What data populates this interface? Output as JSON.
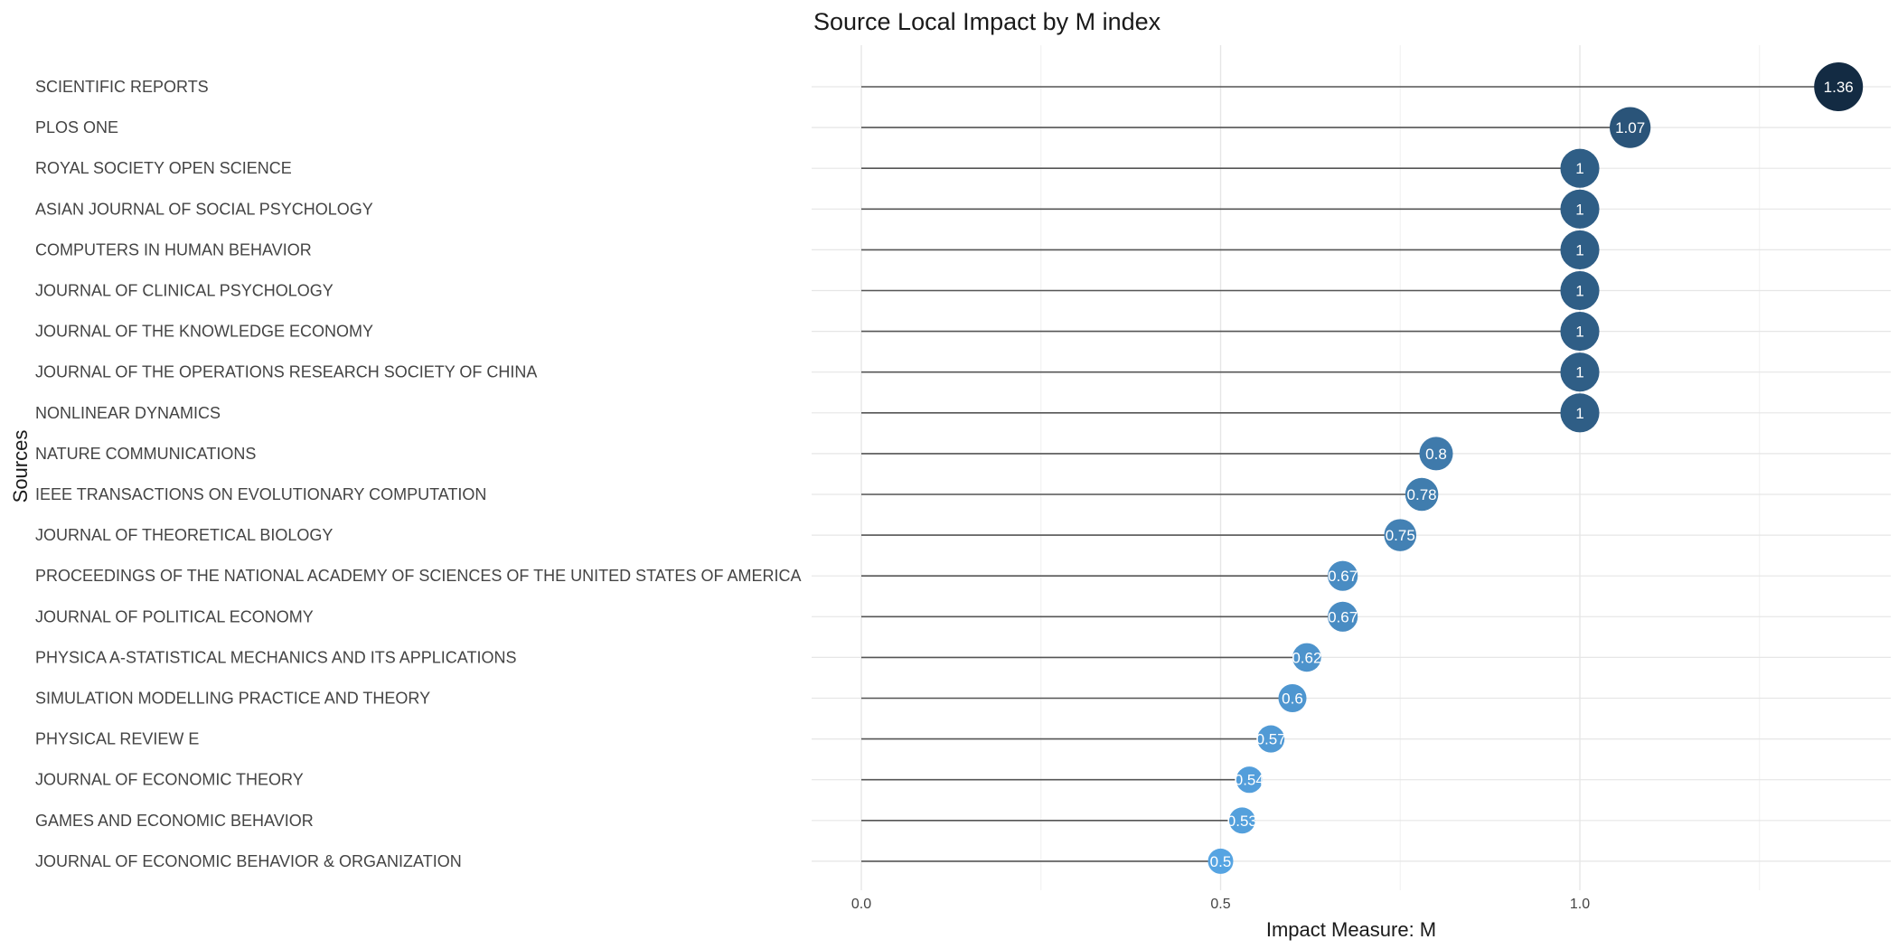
{
  "chart_data": {
    "type": "lollipop",
    "title": "Source Local Impact by M index",
    "xlabel": "Impact Measure: M",
    "ylabel": "Sources",
    "xlim": [
      -0.07,
      1.43
    ],
    "x_ticks": [
      0.0,
      0.5,
      1.0
    ],
    "x_tick_labels": [
      "0.0",
      "0.5",
      "1.0"
    ],
    "grid": true,
    "legend": "none",
    "categories": [
      "SCIENTIFIC REPORTS",
      "PLOS ONE",
      "ROYAL SOCIETY OPEN SCIENCE",
      "ASIAN JOURNAL OF SOCIAL PSYCHOLOGY",
      "COMPUTERS IN HUMAN BEHAVIOR",
      "JOURNAL OF CLINICAL PSYCHOLOGY",
      "JOURNAL OF THE KNOWLEDGE ECONOMY",
      "JOURNAL OF THE OPERATIONS RESEARCH SOCIETY OF CHINA",
      "NONLINEAR DYNAMICS",
      "NATURE COMMUNICATIONS",
      "IEEE TRANSACTIONS ON EVOLUTIONARY COMPUTATION",
      "JOURNAL OF THEORETICAL BIOLOGY",
      "PROCEEDINGS OF THE NATIONAL ACADEMY OF SCIENCES OF THE UNITED STATES OF AMERICA",
      "JOURNAL OF POLITICAL ECONOMY",
      "PHYSICA A-STATISTICAL MECHANICS AND ITS APPLICATIONS",
      "SIMULATION MODELLING PRACTICE AND THEORY",
      "PHYSICAL REVIEW E",
      "JOURNAL OF ECONOMIC THEORY",
      "GAMES AND ECONOMIC BEHAVIOR",
      "JOURNAL OF ECONOMIC BEHAVIOR & ORGANIZATION"
    ],
    "values": [
      1.36,
      1.07,
      1,
      1,
      1,
      1,
      1,
      1,
      1,
      0.8,
      0.78,
      0.75,
      0.67,
      0.67,
      0.62,
      0.6,
      0.57,
      0.54,
      0.53,
      0.5
    ],
    "value_labels": [
      "1.36",
      "1.07",
      "1",
      "1",
      "1",
      "1",
      "1",
      "1",
      "1",
      "0.8",
      "0.78",
      "0.75",
      "0.67",
      "0.67",
      "0.62",
      "0.6",
      "0.57",
      "0.54",
      "0.53",
      "0.5"
    ],
    "colors": {
      "low": "#56a4e2",
      "high": "#132b43",
      "stem": "#555555",
      "grid_major": "#e6e6e6",
      "grid_minor": "#f0f0f0",
      "text": "#444444"
    }
  }
}
